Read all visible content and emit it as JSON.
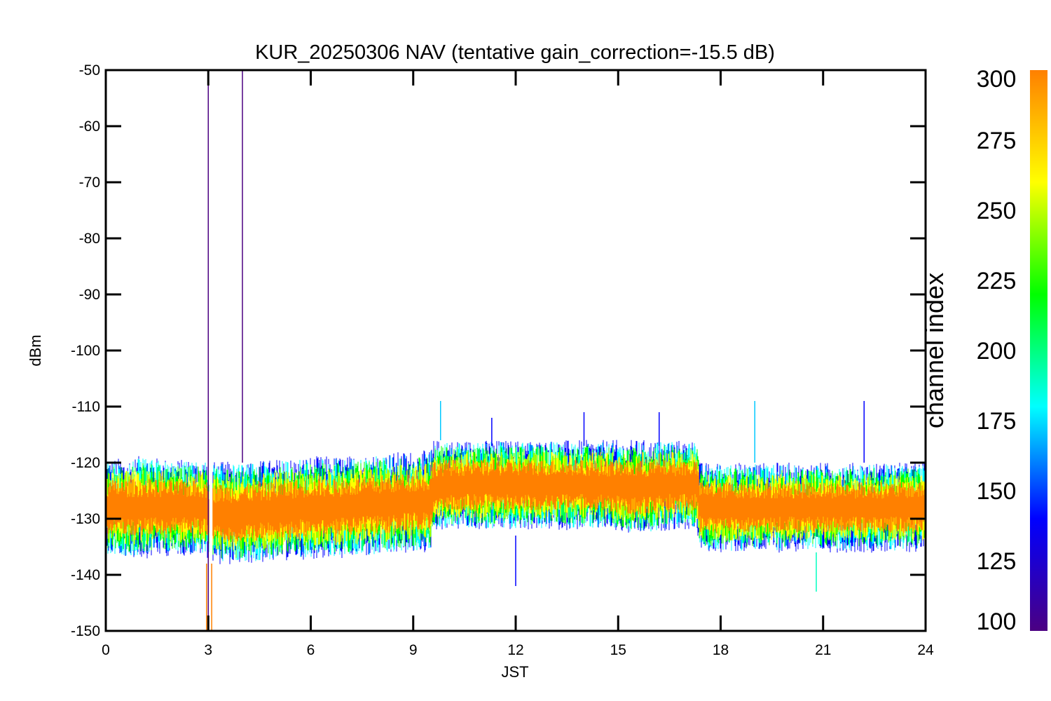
{
  "chart_data": {
    "type": "line",
    "title": "KUR_20250306 NAV (tentative gain_correction=-15.5 dB)",
    "xlabel": "JST",
    "ylabel": "dBm",
    "xlim": [
      0,
      24
    ],
    "ylim": [
      -150,
      -50
    ],
    "x_ticks": [
      "0",
      "3",
      "6",
      "9",
      "12",
      "15",
      "18",
      "21",
      "24"
    ],
    "y_ticks": [
      "-50",
      "-60",
      "-70",
      "-80",
      "-90",
      "-100",
      "-110",
      "-120",
      "-130",
      "-140",
      "-150"
    ],
    "grid": false,
    "colorbar": {
      "label": "channel index",
      "range": [
        100,
        300
      ],
      "ticks": [
        "300",
        "275",
        "250",
        "225",
        "200",
        "175",
        "150",
        "125",
        "100"
      ],
      "colors": [
        "#4b0082",
        "#0000ff",
        "#00ffff",
        "#00ff00",
        "#ffff00",
        "#ff8000"
      ]
    },
    "series": [
      {
        "x": [
          0,
          1,
          2,
          2.9,
          3.2,
          4,
          5,
          6,
          7,
          8,
          9,
          9.5,
          9.6,
          10.5,
          11.5,
          12.5,
          13.5,
          14.5,
          15.5,
          16.5,
          17.3,
          17.4,
          18,
          19,
          20,
          21,
          22,
          23,
          24
        ],
        "y": [
          -128,
          -128,
          -128,
          -128,
          -129,
          -129,
          -128.5,
          -128,
          -128,
          -127.5,
          -127,
          -127,
          -124,
          -124,
          -124,
          -124,
          -124,
          -124,
          -124.5,
          -124,
          -124,
          -128,
          -128,
          -128,
          -128,
          -128,
          -128,
          -128,
          -128
        ],
        "band_high": [
          -121,
          -120,
          -121,
          -121,
          -121,
          -121,
          -121,
          -120,
          -120,
          -120,
          -119,
          -119,
          -117,
          -117,
          -117,
          -117,
          -117,
          -117,
          -117,
          -117,
          -117,
          -121,
          -121,
          -121,
          -121,
          -121,
          -121,
          -121,
          -121
        ],
        "band_low": [
          -136,
          -136,
          -136,
          -136,
          -137,
          -137,
          -137,
          -136,
          -136,
          -136,
          -135,
          -135,
          -131,
          -131,
          -131,
          -131,
          -131,
          -131,
          -132,
          -131,
          -131,
          -135,
          -135,
          -135,
          -135,
          -135,
          -135,
          -135,
          -135
        ]
      }
    ],
    "spikes": [
      {
        "x": 3.0,
        "from": -150,
        "to": -50,
        "color": "#4b0082"
      },
      {
        "x": 4.0,
        "from": -120,
        "to": -50,
        "color": "#4b0082"
      },
      {
        "x": 2.95,
        "from": -150,
        "to": -138,
        "color": "#ff8000"
      },
      {
        "x": 3.1,
        "from": -150,
        "to": -138,
        "color": "#ff8000"
      },
      {
        "x": 9.8,
        "from": -116,
        "to": -109,
        "color": "#00c8ff"
      },
      {
        "x": 11.3,
        "from": -117,
        "to": -112,
        "color": "#0000ff"
      },
      {
        "x": 14.0,
        "from": -117,
        "to": -111,
        "color": "#0000ff"
      },
      {
        "x": 16.2,
        "from": -117,
        "to": -111,
        "color": "#0000ff"
      },
      {
        "x": 19.0,
        "from": -120,
        "to": -109,
        "color": "#00c8ff"
      },
      {
        "x": 22.2,
        "from": -120,
        "to": -109,
        "color": "#0000ff"
      },
      {
        "x": 12.0,
        "from": -142,
        "to": -133,
        "color": "#0000ff"
      },
      {
        "x": 20.8,
        "from": -143,
        "to": -136,
        "color": "#00ffc0"
      }
    ]
  }
}
